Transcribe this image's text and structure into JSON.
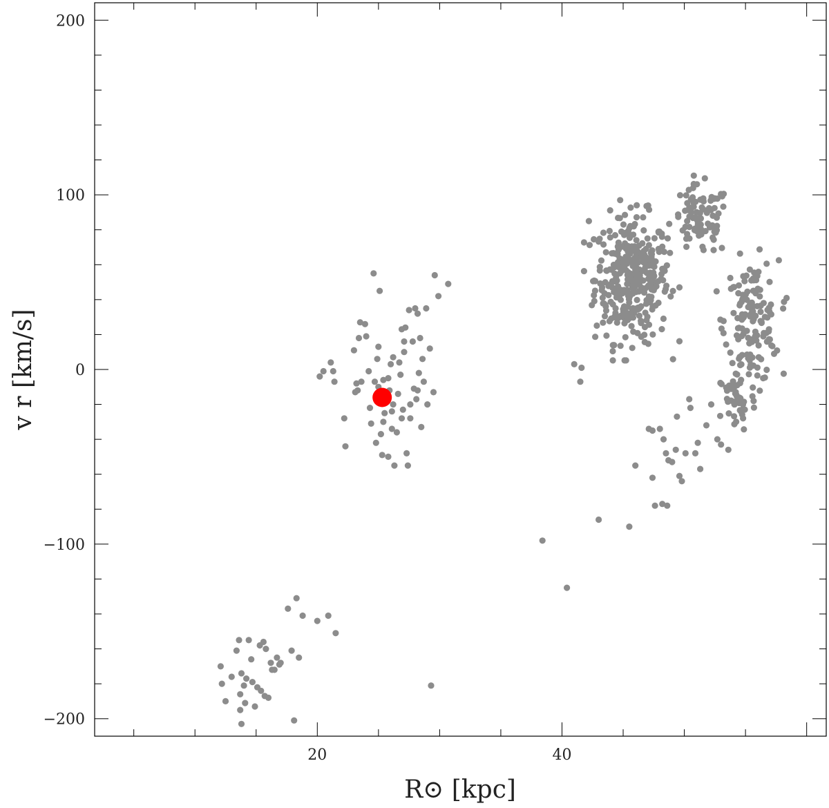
{
  "chart_data": {
    "type": "scatter",
    "xlabel": "R⊙ [kpc]",
    "ylabel": "v r [km/s]",
    "xlim": [
      1.8,
      61.6
    ],
    "ylim": [
      -210,
      210
    ],
    "x_ticks": [
      20,
      40
    ],
    "y_ticks": [
      200,
      100,
      0,
      -100,
      -200
    ],
    "x_tick_labels": [
      "20",
      "40"
    ],
    "y_tick_labels": [
      "200",
      "100",
      "0",
      "−100",
      "−200"
    ],
    "grid": false,
    "legend": "none",
    "colors": {
      "points": "#8c8c8c",
      "highlight": "#ff0000",
      "axes": "#000000"
    },
    "series": [
      {
        "values": [
          [
            12.1,
            -170
          ],
          [
            12.2,
            -180
          ],
          [
            12.5,
            -190
          ],
          [
            13,
            -176
          ],
          [
            13.4,
            -161
          ],
          [
            13.6,
            -155
          ],
          [
            13.7,
            -186
          ],
          [
            13.7,
            -195
          ],
          [
            13.8,
            -174
          ],
          [
            13.8,
            -203
          ],
          [
            14,
            -181
          ],
          [
            14.1,
            -191
          ],
          [
            14.2,
            -177
          ],
          [
            14.4,
            -155
          ],
          [
            14.6,
            -166
          ],
          [
            14.7,
            -179
          ],
          [
            14.9,
            -193
          ],
          [
            15.1,
            -182
          ],
          [
            15.3,
            -158
          ],
          [
            15.4,
            -184
          ],
          [
            15.6,
            -156
          ],
          [
            15.7,
            -187
          ],
          [
            15.8,
            -160
          ],
          [
            16,
            -188
          ],
          [
            16.2,
            -168
          ],
          [
            16.3,
            -172
          ],
          [
            16.5,
            -172
          ],
          [
            16.7,
            -165
          ],
          [
            16.9,
            -169
          ],
          [
            17,
            -168
          ],
          [
            17.6,
            -137
          ],
          [
            17.9,
            -161
          ],
          [
            18.1,
            -201
          ],
          [
            18.3,
            -131
          ],
          [
            18.5,
            -165
          ],
          [
            18.8,
            -141
          ],
          [
            20,
            -144
          ],
          [
            20.9,
            -141
          ],
          [
            21.5,
            -151
          ],
          [
            29.3,
            -181
          ],
          [
            20.2,
            -4
          ],
          [
            20.5,
            -1
          ],
          [
            21.1,
            4
          ],
          [
            21.3,
            -1
          ],
          [
            21.4,
            -7
          ],
          [
            22.2,
            -28
          ],
          [
            22.3,
            -44
          ],
          [
            23,
            11
          ],
          [
            23.1,
            -13
          ],
          [
            23.2,
            -8
          ],
          [
            23.3,
            -12
          ],
          [
            23.4,
            18
          ],
          [
            23.5,
            27
          ],
          [
            23.6,
            -7
          ],
          [
            23.9,
            26
          ],
          [
            24,
            19
          ],
          [
            24.2,
            -1
          ],
          [
            24.3,
            -22
          ],
          [
            24.4,
            -31
          ],
          [
            24.6,
            55
          ],
          [
            24.7,
            -7
          ],
          [
            24.8,
            -42
          ],
          [
            25,
            -10
          ],
          [
            25,
            13
          ],
          [
            25.1,
            45
          ],
          [
            25.2,
            -37
          ],
          [
            25.3,
            -49
          ],
          [
            25.4,
            -30
          ],
          [
            25.5,
            -25
          ],
          [
            25.6,
            -18
          ],
          [
            25.8,
            -50
          ],
          [
            25.9,
            -12
          ],
          [
            26,
            3
          ],
          [
            26.1,
            -24
          ],
          [
            26.1,
            -34
          ],
          [
            26.2,
            7
          ],
          [
            26.3,
            -55
          ],
          [
            26.5,
            -36
          ],
          [
            26.6,
            -14
          ],
          [
            26.7,
            4
          ],
          [
            26.8,
            -3
          ],
          [
            26.9,
            23
          ],
          [
            27,
            -23
          ],
          [
            27.1,
            10
          ],
          [
            27.2,
            24
          ],
          [
            27.3,
            -48
          ],
          [
            27.4,
            -55
          ],
          [
            27.5,
            34
          ],
          [
            27.6,
            -28
          ],
          [
            27.8,
            16
          ],
          [
            27.9,
            -11
          ],
          [
            28,
            35
          ],
          [
            28.1,
            -17
          ],
          [
            28.2,
            32
          ],
          [
            28.3,
            -2
          ],
          [
            28.4,
            18
          ],
          [
            28.5,
            -33
          ],
          [
            28.6,
            6
          ],
          [
            28.7,
            -7
          ],
          [
            28.9,
            35
          ],
          [
            29,
            -20
          ],
          [
            29.2,
            12
          ],
          [
            29.5,
            -13
          ],
          [
            29.6,
            54
          ],
          [
            29.9,
            42
          ],
          [
            30.7,
            49
          ],
          [
            25.8,
            -5
          ],
          [
            26.9,
            -28
          ],
          [
            24.9,
            6
          ],
          [
            27.6,
            -20
          ],
          [
            26.2,
            -20
          ],
          [
            27.1,
            16
          ],
          [
            28.2,
            -12
          ],
          [
            25.4,
            -6
          ],
          [
            38.4,
            -98
          ],
          [
            40.4,
            -125
          ],
          [
            41,
            3
          ],
          [
            41.5,
            -7
          ],
          [
            41.6,
            1
          ],
          [
            42.2,
            85
          ],
          [
            43,
            -86
          ],
          [
            45.5,
            -90
          ],
          [
            46,
            -55
          ],
          [
            47.4,
            -62
          ],
          [
            47.6,
            -78
          ],
          [
            48.2,
            -77
          ],
          [
            48.6,
            -78
          ],
          [
            47.1,
            -34
          ],
          [
            47.4,
            -35
          ],
          [
            48,
            -34
          ],
          [
            48.3,
            -40
          ],
          [
            48.5,
            -48
          ],
          [
            48.7,
            -52
          ],
          [
            49,
            -53
          ],
          [
            49.3,
            -46
          ],
          [
            49.4,
            -27
          ],
          [
            49.6,
            -61
          ],
          [
            49.8,
            -64
          ],
          [
            50.1,
            -48
          ],
          [
            50.4,
            -17
          ],
          [
            50.5,
            -22
          ],
          [
            50.9,
            -48
          ],
          [
            51.1,
            -42
          ],
          [
            51.3,
            -57
          ],
          [
            51.8,
            -32
          ],
          [
            52.2,
            -20
          ],
          [
            52.7,
            -40
          ],
          [
            53,
            -43
          ],
          [
            53.6,
            -46
          ],
          [
            54.8,
            -28
          ]
        ]
      },
      {
        "name": "",
        "values": [
          [
            25.3,
            -16
          ]
        ]
      }
    ],
    "clusters": [
      {
        "cx": 45.7,
        "cy": 52,
        "rx": 3.0,
        "ry": 36,
        "n": 360
      },
      {
        "cx": 51.3,
        "cy": 85,
        "rx": 2.4,
        "ry": 20,
        "n": 90
      },
      {
        "cx": 55.5,
        "cy": 27,
        "rx": 2.2,
        "ry": 35,
        "n": 150
      },
      {
        "cx": 54.3,
        "cy": -18,
        "rx": 1.6,
        "ry": 18,
        "n": 40
      }
    ]
  }
}
